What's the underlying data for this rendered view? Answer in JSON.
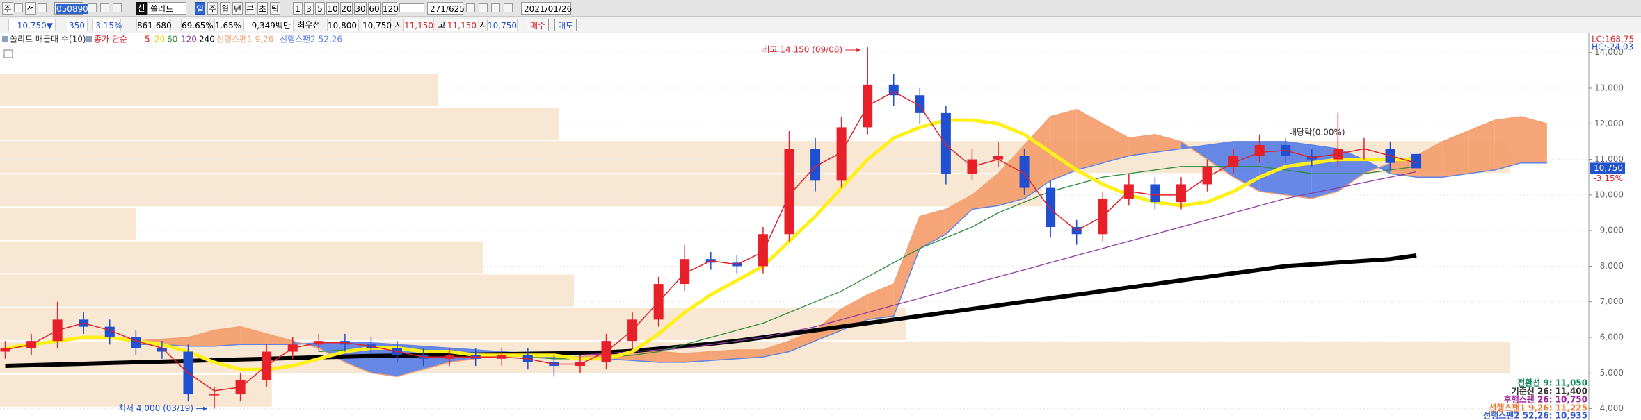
{
  "toolbar": {
    "row1": [
      "주",
      "전",
      "050890",
      "신",
      "쏠리드",
      "일",
      "주",
      "월",
      "년",
      "분",
      "초",
      "틱",
      "1",
      "3",
      "5",
      "10",
      "20",
      "30",
      "60",
      "120",
      "271/625",
      "2021/01/26"
    ],
    "row2": [
      "10,750▼",
      "350",
      "-3.15%",
      "861,680",
      "69.65%",
      "1.65%",
      "9,349백만",
      "최우선",
      "10,800",
      "10,750",
      "시",
      "11,150",
      "고",
      "11,150",
      "저",
      "10,750",
      "매수",
      "매도"
    ]
  },
  "chart_data": {
    "type": "candlestick",
    "ma_label": "종가 단순",
    "lc": "LC:168.75",
    "hc": "HC:-24.03",
    "ylim": [
      3680,
      14150
    ],
    "xlim": [
      -1,
      303
    ],
    "yticks": [
      {
        "value": 4000,
        "label": "4,000"
      },
      {
        "value": 5000,
        "label": "5,000"
      },
      {
        "value": 6000,
        "label": "6,000"
      },
      {
        "value": 7000,
        "label": "7,000"
      },
      {
        "value": 8000,
        "label": "8,000"
      },
      {
        "value": 9000,
        "label": "9,000"
      },
      {
        "value": 10000,
        "label": "10,000"
      },
      {
        "value": 11000,
        "label": "11,000"
      },
      {
        "value": 12000,
        "label": "12,000"
      },
      {
        "value": 13000,
        "label": "13,000"
      },
      {
        "value": 14000,
        "label": "14,000"
      }
    ],
    "grid": true,
    "up_color": "#e8202a",
    "down_color": "#2050d0",
    "x": [
      0,
      5,
      10,
      15,
      20,
      25,
      30,
      35,
      40,
      45,
      50,
      55,
      60,
      65,
      70,
      75,
      80,
      85,
      90,
      95,
      100,
      105,
      110,
      115,
      120,
      125,
      130,
      135,
      140,
      145,
      150,
      155,
      160,
      165,
      170,
      175,
      180,
      185,
      190,
      195,
      200,
      205,
      210,
      215,
      220,
      225,
      230,
      235,
      240,
      245,
      250,
      255,
      260,
      265,
      270
    ],
    "open": [
      5600,
      5700,
      5900,
      6500,
      6300,
      6000,
      5700,
      5600,
      4400,
      4400,
      4800,
      5600,
      5800,
      5900,
      5800,
      5700,
      5500,
      5400,
      5500,
      5400,
      5500,
      5300,
      5200,
      5300,
      5900,
      6500,
      7500,
      8200,
      8100,
      8000,
      8900,
      11300,
      10400,
      11900,
      13100,
      12800,
      12300,
      10600,
      11000,
      11100,
      10200,
      9100,
      8900,
      9900,
      10300,
      9800,
      10300,
      10800,
      11100,
      11400,
      11100,
      11000,
      11300,
      11300,
      11150
    ],
    "high": [
      5900,
      6100,
      7000,
      6700,
      6500,
      6200,
      5900,
      5800,
      4600,
      5000,
      5800,
      6000,
      6100,
      6100,
      6000,
      5900,
      5700,
      5700,
      5700,
      5700,
      5700,
      5500,
      5500,
      6100,
      6700,
      7700,
      8600,
      8400,
      8300,
      9100,
      11800,
      11600,
      12200,
      14150,
      13400,
      13000,
      12500,
      11300,
      11500,
      11300,
      10400,
      9300,
      10100,
      10600,
      10500,
      10500,
      11000,
      11300,
      11700,
      11600,
      11300,
      12300,
      11600,
      11500,
      11150
    ],
    "low": [
      5400,
      5500,
      5700,
      6100,
      5800,
      5500,
      5400,
      4200,
      4000,
      4200,
      4600,
      5400,
      5600,
      5600,
      5500,
      5300,
      5200,
      5200,
      5200,
      5200,
      5100,
      4900,
      5000,
      5100,
      5700,
      6300,
      7300,
      7900,
      7800,
      7800,
      8700,
      10100,
      10200,
      11700,
      12500,
      12000,
      10300,
      10400,
      10800,
      10000,
      8800,
      8600,
      8700,
      9700,
      9600,
      9600,
      10100,
      10600,
      10900,
      10900,
      10800,
      10800,
      11000,
      10700,
      10750
    ],
    "close": [
      5700,
      5900,
      6500,
      6300,
      6000,
      5700,
      5600,
      4400,
      4400,
      4800,
      5600,
      5800,
      5900,
      5800,
      5700,
      5500,
      5400,
      5500,
      5400,
      5500,
      5300,
      5200,
      5300,
      5900,
      6500,
      7500,
      8200,
      8100,
      8000,
      8900,
      11300,
      10400,
      11900,
      13100,
      12800,
      12300,
      10600,
      11000,
      11100,
      10200,
      9100,
      8900,
      9900,
      10300,
      9800,
      10300,
      10800,
      11100,
      11400,
      11100,
      11000,
      11300,
      11300,
      10900,
      10750
    ],
    "moving_averages": [
      {
        "name": "5",
        "color": "#e0202a",
        "width": 1.5,
        "values": [
          5650,
          5800,
          6200,
          6400,
          6200,
          5900,
          5700,
          5000,
          4500,
          4600,
          5200,
          5700,
          5850,
          5850,
          5750,
          5600,
          5450,
          5450,
          5450,
          5450,
          5400,
          5250,
          5250,
          5600,
          6200,
          7000,
          7800,
          8150,
          8050,
          8400,
          10000,
          10800,
          11200,
          12500,
          12900,
          12500,
          11400,
          10800,
          11000,
          10600,
          9600,
          9000,
          9400,
          10100,
          10000,
          10000,
          10500,
          10900,
          11200,
          11250,
          11050,
          11150,
          11300,
          11100,
          10900
        ]
      },
      {
        "name": "20",
        "color": "#fff01a",
        "width": 5,
        "values": [
          5700,
          5800,
          5900,
          6000,
          6000,
          5900,
          5800,
          5600,
          5300,
          5100,
          5100,
          5200,
          5400,
          5600,
          5700,
          5700,
          5600,
          5600,
          5500,
          5500,
          5500,
          5500,
          5400,
          5400,
          5600,
          6100,
          6700,
          7200,
          7600,
          8000,
          8700,
          9400,
          10200,
          11000,
          11600,
          11900,
          12100,
          12100,
          12000,
          11700,
          11200,
          10700,
          10300,
          10000,
          9800,
          9700,
          9800,
          10100,
          10500,
          10800,
          10900,
          11000,
          11000,
          11000,
          11000
        ]
      },
      {
        "name": "60",
        "color": "#2e8b3a",
        "width": 1.3,
        "values": [
          null,
          null,
          null,
          null,
          null,
          null,
          null,
          null,
          null,
          null,
          null,
          null,
          5600,
          5650,
          5700,
          5700,
          5650,
          5600,
          5550,
          5500,
          5450,
          5400,
          5400,
          5450,
          5500,
          5600,
          5800,
          6000,
          6200,
          6400,
          6700,
          7000,
          7300,
          7700,
          8100,
          8500,
          8800,
          9100,
          9500,
          9800,
          10100,
          10300,
          10500,
          10600,
          10700,
          10800,
          10800,
          10800,
          10800,
          10700,
          10600,
          10600,
          10600,
          10700,
          10800
        ]
      },
      {
        "name": "120",
        "color": "#8e3aa0",
        "width": 1.3,
        "values": [
          null,
          null,
          null,
          null,
          null,
          null,
          null,
          null,
          null,
          null,
          null,
          null,
          null,
          null,
          null,
          null,
          null,
          null,
          null,
          null,
          null,
          null,
          5500,
          5550,
          5600,
          5650,
          5700,
          5800,
          5900,
          6000,
          6150,
          6300,
          6500,
          6700,
          6900,
          7100,
          7300,
          7500,
          7700,
          7900,
          8100,
          8300,
          8500,
          8700,
          8900,
          9100,
          9300,
          9500,
          9700,
          9900,
          10050,
          10200,
          10350,
          10500,
          10650
        ]
      },
      {
        "name": "240",
        "color": "#000000",
        "width": 6,
        "values": [
          5200,
          5220,
          5240,
          5260,
          5280,
          5300,
          5320,
          5340,
          5360,
          5380,
          5400,
          5420,
          5440,
          5460,
          5480,
          5490,
          5500,
          5510,
          5520,
          5530,
          5540,
          5550,
          5560,
          5580,
          5620,
          5680,
          5750,
          5820,
          5900,
          6000,
          6100,
          6200,
          6300,
          6400,
          6500,
          6600,
          6700,
          6800,
          6900,
          7000,
          7100,
          7200,
          7300,
          7400,
          7500,
          7600,
          7700,
          7800,
          7900,
          8000,
          8050,
          8100,
          8150,
          8200,
          8300
        ]
      }
    ],
    "ichimoku": {
      "x": [
        25,
        30,
        35,
        40,
        45,
        50,
        55,
        60,
        65,
        70,
        75,
        80,
        85,
        90,
        95,
        100,
        105,
        110,
        115,
        120,
        125,
        130,
        135,
        140,
        145,
        150,
        155,
        160,
        165,
        170,
        175,
        180,
        185,
        190,
        195,
        200,
        205,
        210,
        215,
        220,
        225,
        230,
        235,
        240,
        245,
        250,
        255,
        260,
        265,
        270,
        275,
        280,
        285,
        290,
        295
      ],
      "span1": {
        "name": "선행스팬1 9,26",
        "color": "#f4a070",
        "values": [
          5900,
          5950,
          6000,
          6200,
          6300,
          6100,
          5900,
          5700,
          5300,
          5000,
          4900,
          5100,
          5300,
          5400,
          5500,
          5450,
          5400,
          5450,
          5600,
          5650,
          5600,
          5550,
          5600,
          5650,
          5650,
          5900,
          6200,
          6800,
          7200,
          7500,
          9400,
          9600,
          10000,
          10600,
          11400,
          12200,
          12400,
          12000,
          11600,
          11700,
          11500,
          11000,
          10500,
          10100,
          10000,
          9900,
          10100,
          10600,
          10900,
          11100,
          11500,
          11800,
          12100,
          12200,
          12000
        ]
      },
      "span2": {
        "name": "선행스팬2 52,26",
        "color": "#5f82e6",
        "values": [
          5800,
          5800,
          5750,
          5750,
          5800,
          5800,
          5800,
          5850,
          5850,
          5850,
          5800,
          5750,
          5700,
          5650,
          5600,
          5550,
          5500,
          5450,
          5400,
          5350,
          5300,
          5300,
          5350,
          5400,
          5450,
          5600,
          5900,
          6200,
          6500,
          6600,
          8500,
          8900,
          9600,
          9700,
          9900,
          10400,
          10700,
          10900,
          11100,
          11200,
          11300,
          11400,
          11500,
          11500,
          11500,
          11400,
          11300,
          11000,
          10600,
          10500,
          10500,
          10600,
          10700,
          10900,
          10900
        ]
      }
    },
    "volume_profile": {
      "name": "쏠리드 매물대 수(10)",
      "color": "#f8e7d3",
      "bins": [
        4030,
        4968,
        5906,
        6844,
        7782,
        8720,
        9658,
        10596,
        11534,
        12472,
        13410
      ],
      "values": [
        18,
        100,
        60,
        38,
        32,
        9,
        69,
        100,
        37,
        29
      ]
    },
    "last_price": {
      "value": 10750,
      "label": "10,750"
    },
    "last_change": "-3.15%",
    "annotations": {
      "high": "최고 14,150 (09/08)",
      "low": "최저 4,000 (03/19)",
      "ex_dividend": "배당락(0.00%)"
    },
    "ichimoku_summary": [
      {
        "text": "전환선 9: 11,050",
        "color": "#0a8a55"
      },
      {
        "text": "기준선 26: 11,400",
        "color": "#333333"
      },
      {
        "text": "후행스팬 26: 10,750",
        "color": "#a0209f"
      },
      {
        "text": "선행스팬1 9,26: 11,225",
        "color": "#f07a30"
      },
      {
        "text": "선행스팬2 52,26: 10,935",
        "color": "#3a5bd0"
      }
    ]
  }
}
